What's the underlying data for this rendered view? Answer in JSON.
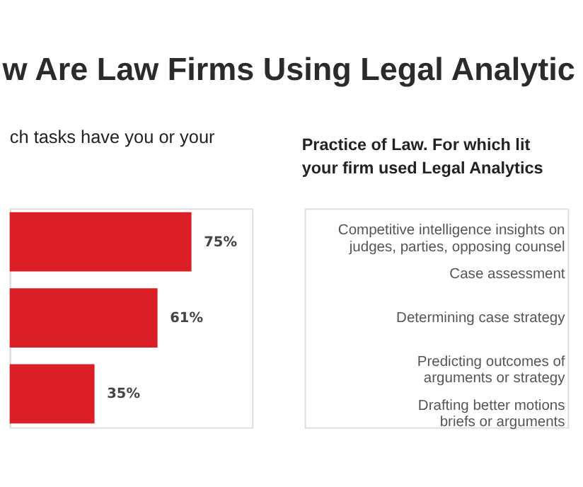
{
  "chart_data": [
    {
      "type": "bar",
      "title": "w Are Law Firms Using Legal Analytic",
      "subtitle": "ch tasks have you or your",
      "orientation": "horizontal",
      "categories": [
        null,
        null,
        null
      ],
      "values": [
        75,
        61,
        35
      ],
      "value_labels": [
        "75%",
        "61%",
        "35%"
      ],
      "color": "#dc1f26",
      "xlim": [
        0,
        100
      ],
      "tick_labels": false,
      "grid": false
    },
    {
      "type": "other",
      "title": "Practice of Law. For which lit",
      "subtitle": "your firm used Legal Analytics",
      "annotations": [
        "Competitive intelligence insights on\njudges, parties, opposing counsel",
        "Case assessment",
        "Determining case strategy",
        "Predicting outcomes of\narguments or strategy",
        "Drafting better motions\nbriefs or arguments"
      ]
    }
  ]
}
